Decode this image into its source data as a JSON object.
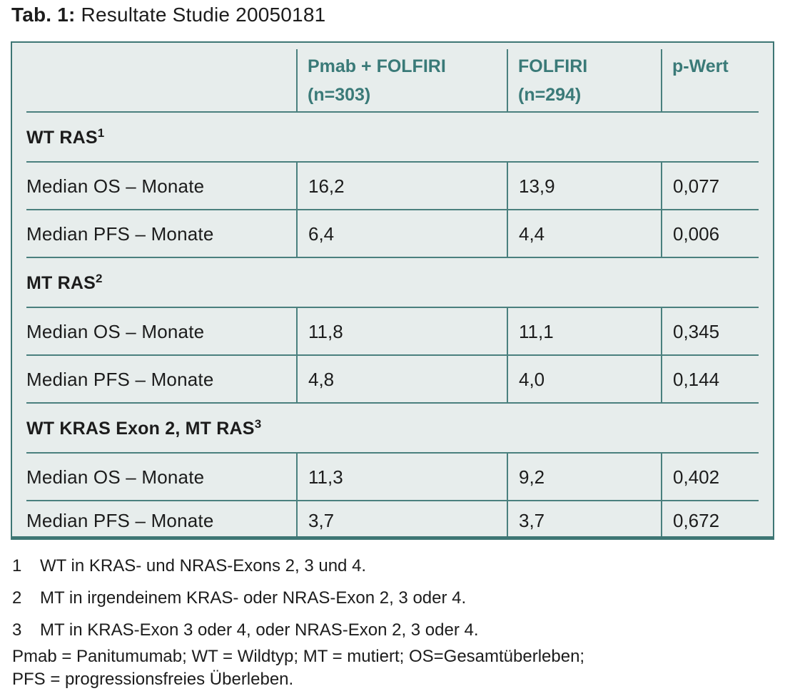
{
  "title": {
    "label": "Tab. 1:",
    "text": "Resultate Studie 20050181"
  },
  "colors": {
    "teal_text": "#3a7a78",
    "grid_line": "#4a807e",
    "outer_border": "#3e7674",
    "table_bg": "#e7edec",
    "body_text": "#1c1c1c",
    "page_bg": "#ffffff"
  },
  "table": {
    "header": {
      "col0": {
        "line1": "",
        "line2": ""
      },
      "col1": {
        "line1": "Pmab + FOLFIRI",
        "line2": "(n=303)"
      },
      "col2": {
        "line1": "FOLFIRI",
        "line2": "(n=294)"
      },
      "col3": {
        "line1": "p-Wert",
        "line2": ""
      }
    },
    "sections": [
      {
        "title": "WT RAS",
        "sup": "1",
        "rows": [
          {
            "label": "Median OS – Monate",
            "values": [
              "16,2",
              "13,9",
              "0,077"
            ]
          },
          {
            "label": "Median PFS – Monate",
            "values": [
              "6,4",
              "4,4",
              "0,006"
            ]
          }
        ]
      },
      {
        "title": "MT RAS",
        "sup": "2",
        "rows": [
          {
            "label": "Median OS – Monate",
            "values": [
              "11,8",
              "11,1",
              "0,345"
            ]
          },
          {
            "label": "Median PFS – Monate",
            "values": [
              "4,8",
              "4,0",
              "0,144"
            ]
          }
        ]
      },
      {
        "title": "WT KRAS Exon 2, MT RAS",
        "sup": "3",
        "rows": [
          {
            "label": "Median OS – Monate",
            "values": [
              "11,3",
              "9,2",
              "0,402"
            ]
          },
          {
            "label": "Median PFS – Monate",
            "values": [
              "3,7",
              "3,7",
              "0,672"
            ]
          }
        ]
      }
    ]
  },
  "footnotes": [
    {
      "num": "1",
      "text": "WT in KRAS- und NRAS-Exons 2, 3 und 4."
    },
    {
      "num": "2",
      "text": "MT in irgendeinem KRAS- oder NRAS-Exon 2, 3 oder 4."
    },
    {
      "num": "3",
      "text": "MT in KRAS-Exon 3 oder 4, oder NRAS-Exon 2, 3 oder 4."
    }
  ],
  "abbreviations": {
    "line1": "Pmab = Panitumumab; WT = Wildtyp; MT = mutiert; OS=Gesamtüberleben;",
    "line2": "PFS = progressionsfreies Überleben."
  }
}
